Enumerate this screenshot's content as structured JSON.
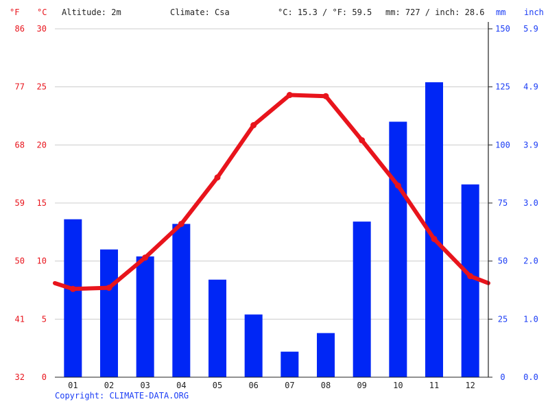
{
  "header": {
    "f_unit": "°F",
    "c_unit": "°C",
    "altitude": "Altitude: 2m",
    "climate": "Climate: Csa",
    "temp_avg": "°C: 15.3 / °F: 59.5",
    "precip_avg": "mm: 727 / inch: 28.6",
    "mm_unit": "mm",
    "inch_unit": "inch"
  },
  "copyright": "Copyright: CLIMATE-DATA.ORG",
  "colors": {
    "temperature": "#e8141c",
    "precipitation": "#0026f5",
    "grid": "#cccccc",
    "axis": "#222222",
    "bg": "#ffffff"
  },
  "chart_data": {
    "type": "bar",
    "categories": [
      "01",
      "02",
      "03",
      "04",
      "05",
      "06",
      "07",
      "08",
      "09",
      "10",
      "11",
      "12"
    ],
    "series": [
      {
        "kind": "bar",
        "axis": "right",
        "values": [
          68,
          55,
          52,
          66,
          42,
          27,
          11,
          19,
          67,
          110,
          127,
          83
        ]
      },
      {
        "kind": "line",
        "axis": "left",
        "values": [
          7.6,
          7.7,
          10.3,
          13.2,
          17.2,
          21.7,
          24.3,
          24.2,
          20.4,
          16.5,
          11.9,
          8.7
        ]
      }
    ],
    "line_end_values": [
      8.1,
      8.1
    ],
    "left_axis_c": {
      "ticks": [
        "0",
        "5",
        "10",
        "15",
        "20",
        "25",
        "30"
      ],
      "range": [
        0,
        30
      ]
    },
    "left_axis_f": {
      "ticks": [
        "32",
        "41",
        "50",
        "59",
        "68",
        "77",
        "86"
      ]
    },
    "right_axis_mm": {
      "ticks": [
        "0",
        "25",
        "50",
        "75",
        "100",
        "125",
        "150"
      ],
      "range": [
        0,
        150
      ]
    },
    "right_axis_inch": {
      "ticks": [
        "0.0",
        "1.0",
        "2.0",
        "3.0",
        "3.9",
        "4.9",
        "5.9"
      ]
    },
    "grid": true
  }
}
